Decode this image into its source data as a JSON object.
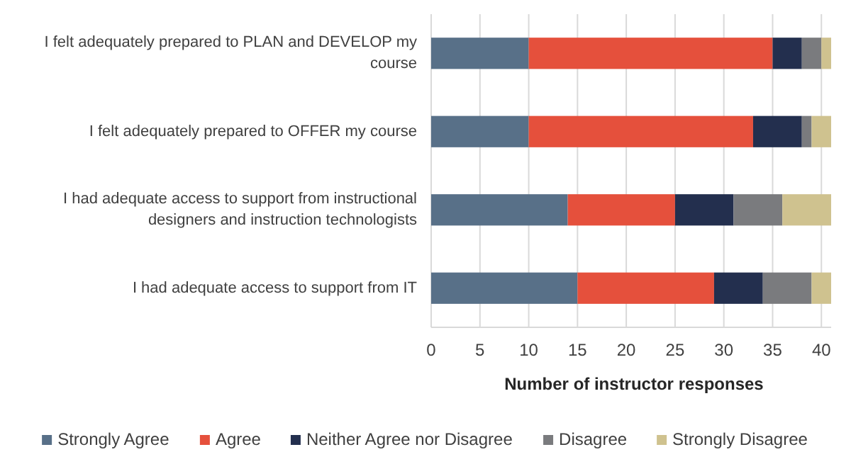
{
  "chart_data": {
    "type": "bar",
    "orientation": "horizontal",
    "stacked": true,
    "categories": [
      "I felt adequately prepared to PLAN and DEVELOP my course",
      "I felt adequately prepared to OFFER my course",
      "I had adequate access to support from instructional designers and instruction technologists",
      "I had adequate access to support from IT"
    ],
    "series": [
      {
        "name": "Strongly Agree",
        "color": "#587088",
        "values": [
          10,
          10,
          14,
          15
        ]
      },
      {
        "name": "Agree",
        "color": "#e5503c",
        "values": [
          25,
          23,
          11,
          14
        ]
      },
      {
        "name": "Neither Agree nor Disagree",
        "color": "#232f4e",
        "values": [
          3,
          5,
          6,
          5
        ]
      },
      {
        "name": "Disagree",
        "color": "#7a7b7e",
        "values": [
          2,
          1,
          5,
          5
        ]
      },
      {
        "name": "Strongly Disagree",
        "color": "#cfc28f",
        "values": [
          1,
          2,
          5,
          2
        ]
      }
    ],
    "xlim": [
      0,
      41
    ],
    "xticks": [
      0,
      5,
      10,
      15,
      20,
      25,
      30,
      35,
      40
    ],
    "xlabel": "Number of instructor responses",
    "grid": "x",
    "legend": "bottom"
  }
}
